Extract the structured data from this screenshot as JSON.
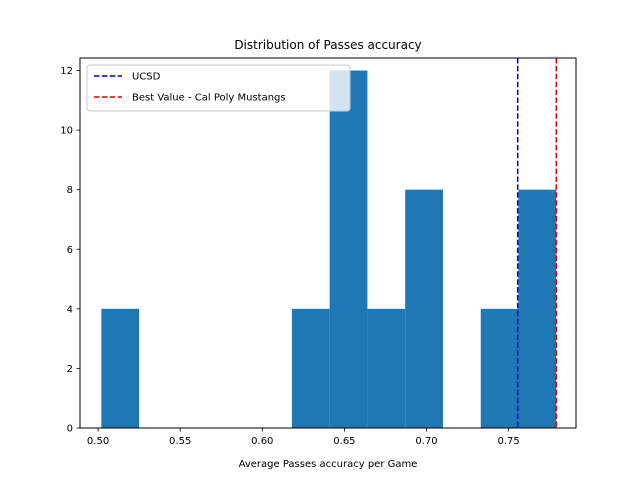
{
  "chart_data": {
    "type": "bar",
    "title": "Distribution of Passes accuracy",
    "xlabel": "Average Passes accuracy per Game",
    "ylabel": "",
    "xlim": [
      0.489,
      0.791
    ],
    "ylim": [
      0,
      12.42
    ],
    "x_ticks": [
      0.5,
      0.55,
      0.6,
      0.65,
      0.7,
      0.75
    ],
    "x_tick_labels": [
      "0.50",
      "0.55",
      "0.60",
      "0.65",
      "0.70",
      "0.75"
    ],
    "y_ticks": [
      0,
      2,
      4,
      6,
      8,
      10,
      12
    ],
    "y_tick_labels": [
      "0",
      "2",
      "4",
      "6",
      "8",
      "10",
      "12"
    ],
    "bar_color": "#1f77b4",
    "bins": [
      {
        "x0": 0.502,
        "x1": 0.525,
        "count": 4
      },
      {
        "x0": 0.525,
        "x1": 0.548,
        "count": 0
      },
      {
        "x0": 0.548,
        "x1": 0.571,
        "count": 0
      },
      {
        "x0": 0.571,
        "x1": 0.594,
        "count": 0
      },
      {
        "x0": 0.594,
        "x1": 0.618,
        "count": 0
      },
      {
        "x0": 0.618,
        "x1": 0.641,
        "count": 4
      },
      {
        "x0": 0.641,
        "x1": 0.664,
        "count": 12
      },
      {
        "x0": 0.664,
        "x1": 0.687,
        "count": 4
      },
      {
        "x0": 0.687,
        "x1": 0.71,
        "count": 8
      },
      {
        "x0": 0.71,
        "x1": 0.733,
        "count": 0
      },
      {
        "x0": 0.733,
        "x1": 0.756,
        "count": 4
      },
      {
        "x0": 0.756,
        "x1": 0.779,
        "count": 8
      }
    ],
    "reference_lines": [
      {
        "name": "UCSD",
        "x": 0.7555,
        "color": "#0000cc"
      },
      {
        "name": "Best Value - Cal Poly Mustangs",
        "x": 0.779,
        "color": "#dd0000"
      }
    ],
    "legend_position": "top-left",
    "grid": false
  }
}
